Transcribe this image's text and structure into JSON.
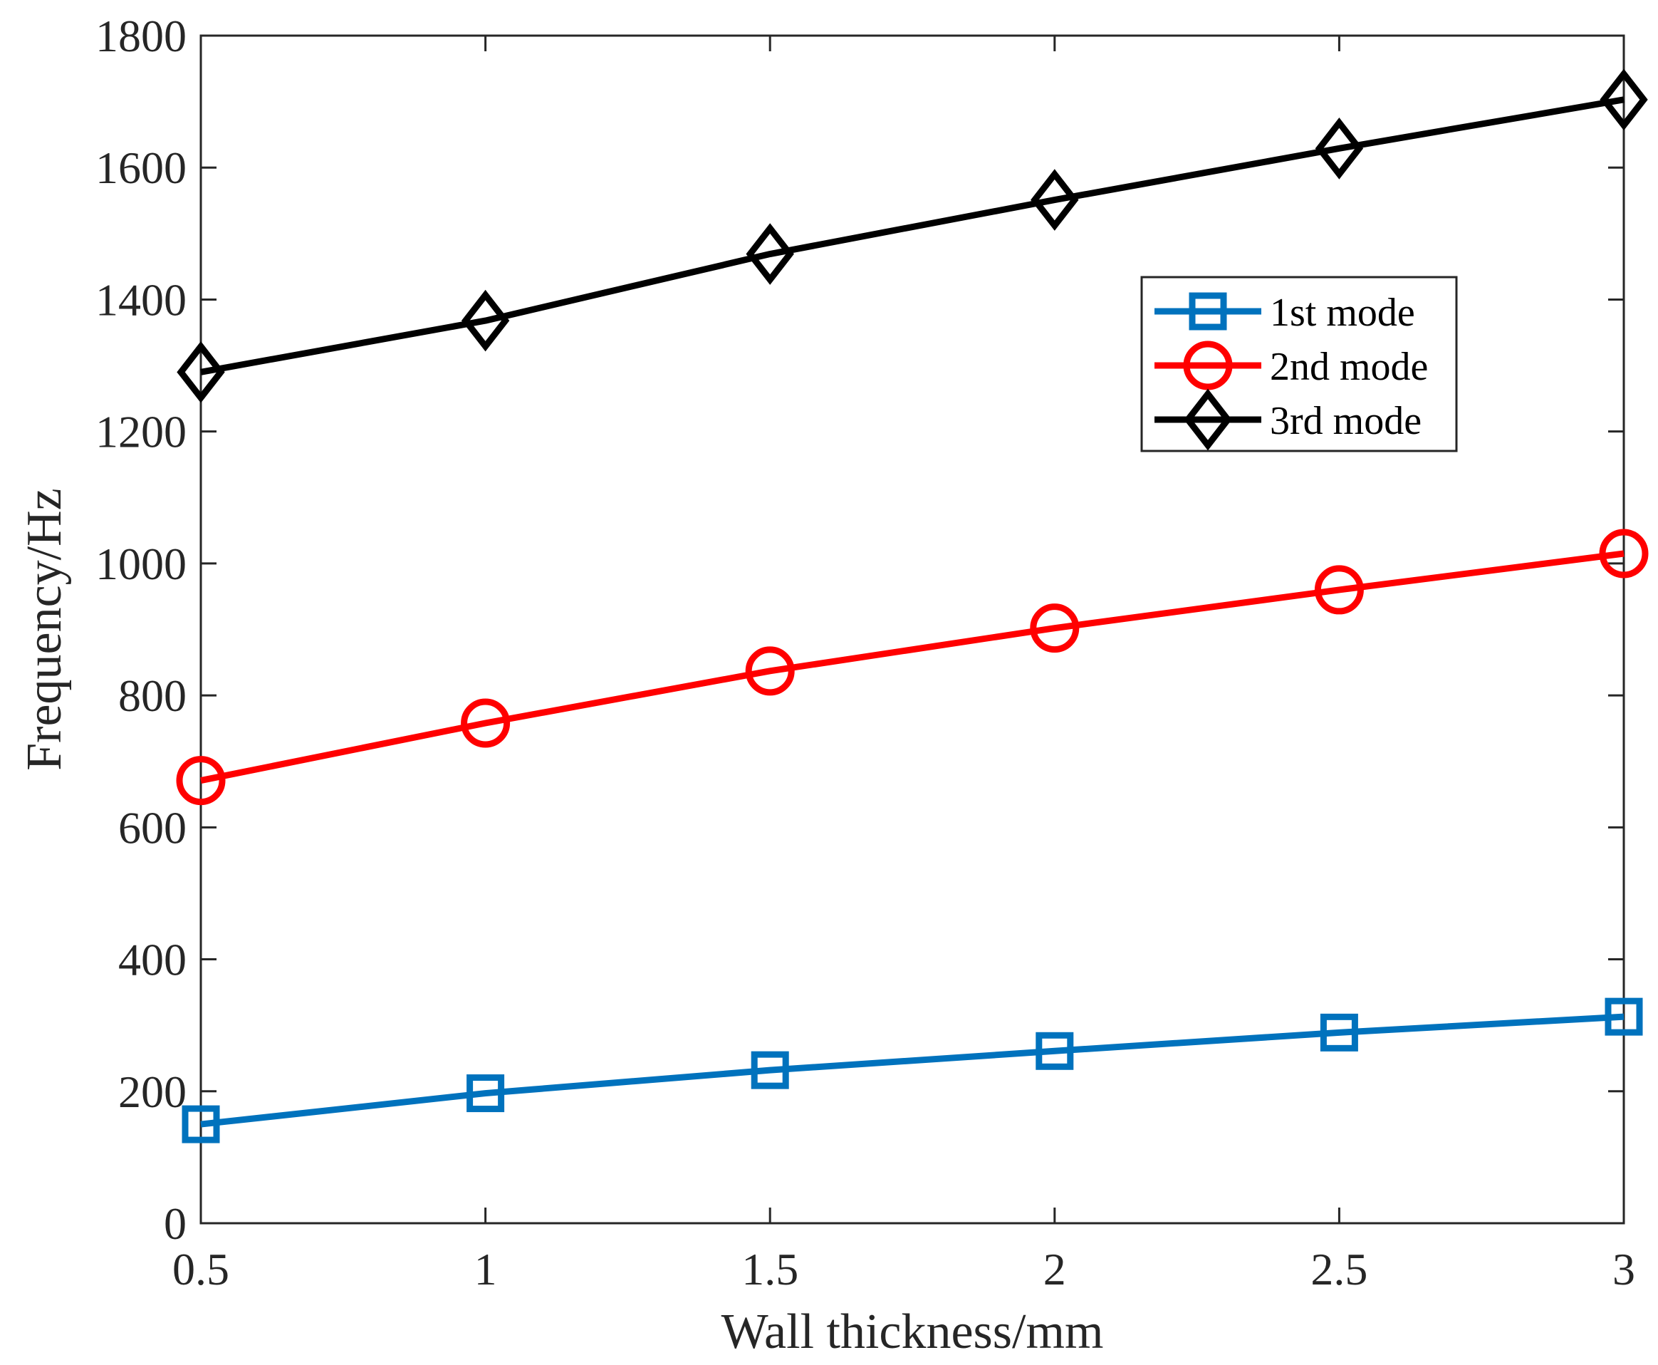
{
  "chart_data": {
    "type": "line",
    "title": "",
    "xlabel": "Wall thickness/mm",
    "ylabel": "Frequency/Hz",
    "x": [
      0.5,
      1,
      1.5,
      2,
      2.5,
      3
    ],
    "xlim": [
      0.5,
      3
    ],
    "ylim": [
      0,
      1800
    ],
    "x_ticks": [
      0.5,
      1,
      1.5,
      2,
      2.5,
      3
    ],
    "x_tick_labels": [
      "0.5",
      "1",
      "1.5",
      "2",
      "2.5",
      "3"
    ],
    "y_ticks": [
      0,
      200,
      400,
      600,
      800,
      1000,
      1200,
      1400,
      1600,
      1800
    ],
    "y_tick_labels": [
      "0",
      "200",
      "400",
      "600",
      "800",
      "1000",
      "1200",
      "1400",
      "1600",
      "1800"
    ],
    "grid": false,
    "legend_position": "upper-right-inside",
    "series": [
      {
        "name": "1st mode",
        "marker": "square",
        "color": "#0072BD",
        "values": [
          150,
          197,
          232,
          261,
          289,
          313
        ]
      },
      {
        "name": "2nd mode",
        "marker": "circle",
        "color": "#FF0000",
        "values": [
          671,
          758,
          837,
          902,
          960,
          1015
        ]
      },
      {
        "name": "3rd mode",
        "marker": "diamond",
        "color": "#000000",
        "values": [
          1290,
          1368,
          1469,
          1551,
          1629,
          1703
        ]
      }
    ]
  }
}
